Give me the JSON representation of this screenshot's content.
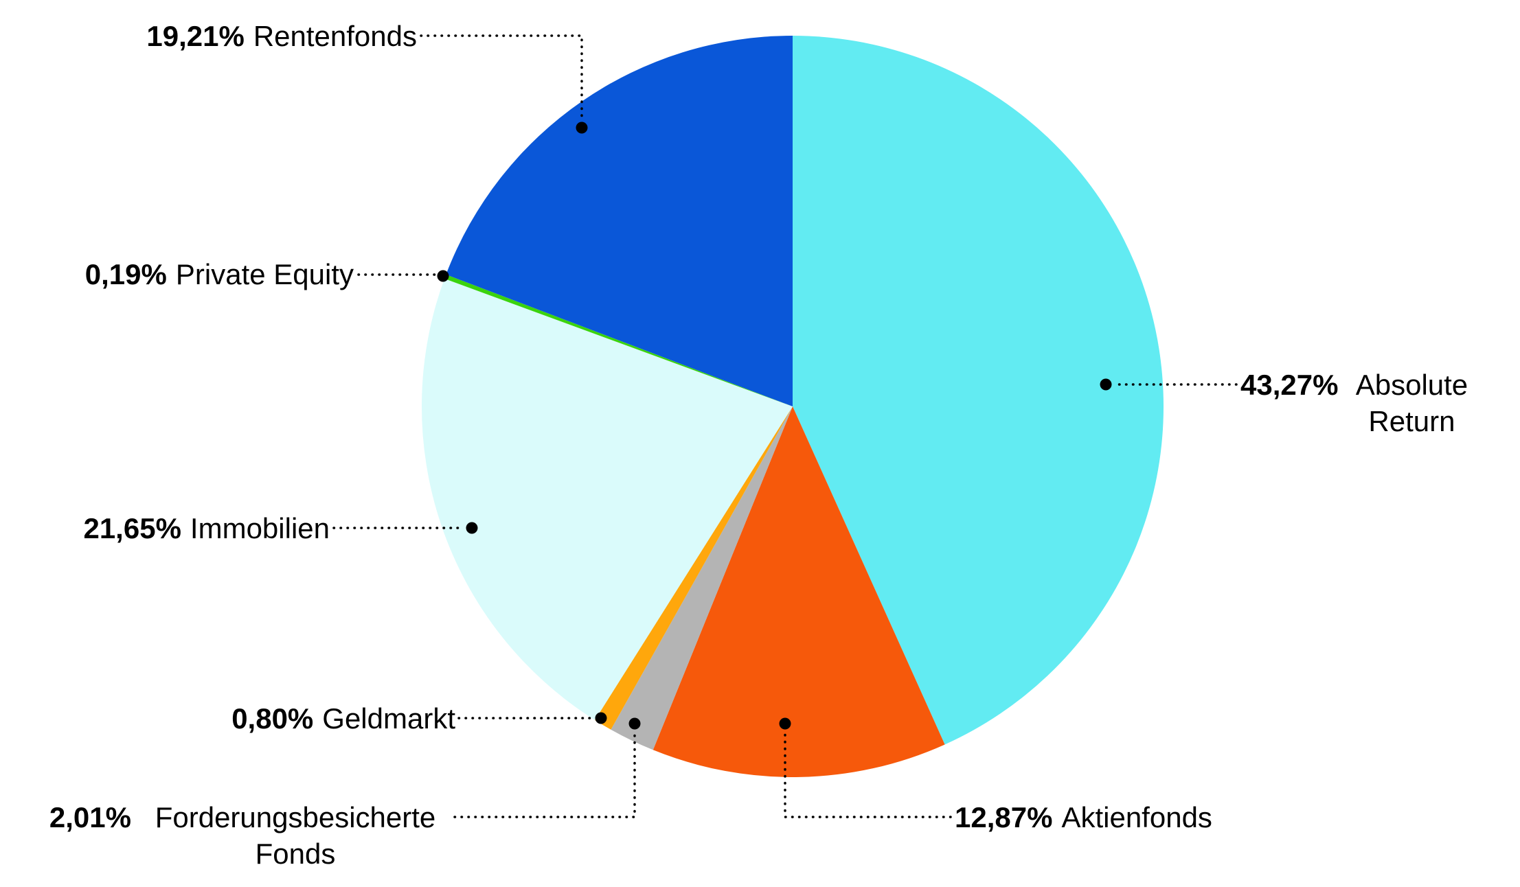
{
  "chart_data": {
    "type": "pie",
    "direction": "clockwise",
    "start_angle_deg": 0,
    "legend_position": "callout-labels",
    "slices": [
      {
        "label": "Absolute Return",
        "percent_label": "43,27%",
        "value": 43.27,
        "color": "#62ebf2"
      },
      {
        "label": "Aktienfonds",
        "percent_label": "12,87%",
        "value": 12.87,
        "color": "#f6590b"
      },
      {
        "label": "Forderungsbesicherte Fonds",
        "percent_label": "2,01%",
        "value": 2.01,
        "color": "#b4b4b4"
      },
      {
        "label": "Geldmarkt",
        "percent_label": "0,80%",
        "value": 0.8,
        "color": "#ffa70c"
      },
      {
        "label": "Immobilien",
        "percent_label": "21,65%",
        "value": 21.65,
        "color": "#dafbfb"
      },
      {
        "label": "Private Equity",
        "percent_label": "0,19%",
        "value": 0.19,
        "color": "#3bd30e"
      },
      {
        "label": "Rentenfonds",
        "percent_label": "19,21%",
        "value": 19.21,
        "color": "#0a57d8"
      }
    ]
  }
}
